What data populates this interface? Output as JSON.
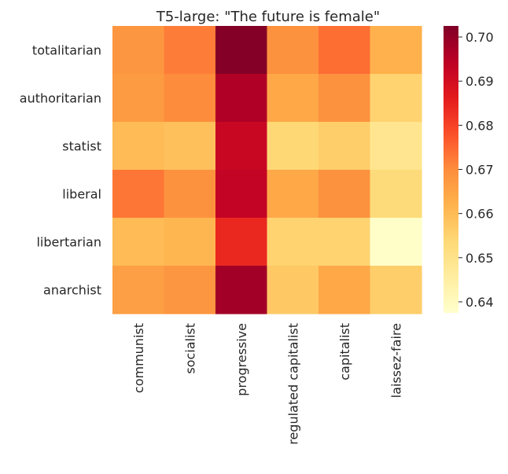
{
  "chart_data": {
    "type": "heatmap",
    "title": "T5-large: \"The future is female\"",
    "xlabel": "",
    "ylabel": "",
    "x_categories": [
      "communist",
      "socialist",
      "progressive",
      "regulated capitalist",
      "capitalist",
      "laissez-faire"
    ],
    "y_categories": [
      "totalitarian",
      "authoritarian",
      "statist",
      "liberal",
      "libertarian",
      "anarchist"
    ],
    "values": [
      [
        0.668,
        0.672,
        0.702,
        0.669,
        0.674,
        0.662
      ],
      [
        0.667,
        0.67,
        0.696,
        0.664,
        0.669,
        0.655
      ],
      [
        0.66,
        0.659,
        0.692,
        0.654,
        0.656,
        0.649
      ],
      [
        0.673,
        0.669,
        0.693,
        0.664,
        0.669,
        0.653
      ],
      [
        0.66,
        0.661,
        0.684,
        0.655,
        0.655,
        0.638
      ],
      [
        0.666,
        0.668,
        0.698,
        0.657,
        0.664,
        0.656
      ]
    ],
    "vmin": 0.6375,
    "vmax": 0.7025,
    "colormap": "YlOrRd",
    "colorbar": {
      "ticks": [
        0.64,
        0.65,
        0.66,
        0.67,
        0.68,
        0.69,
        0.7
      ],
      "tick_labels": [
        "0.64",
        "0.65",
        "0.66",
        "0.67",
        "0.68",
        "0.69",
        "0.70"
      ]
    },
    "legend_position": "right"
  }
}
